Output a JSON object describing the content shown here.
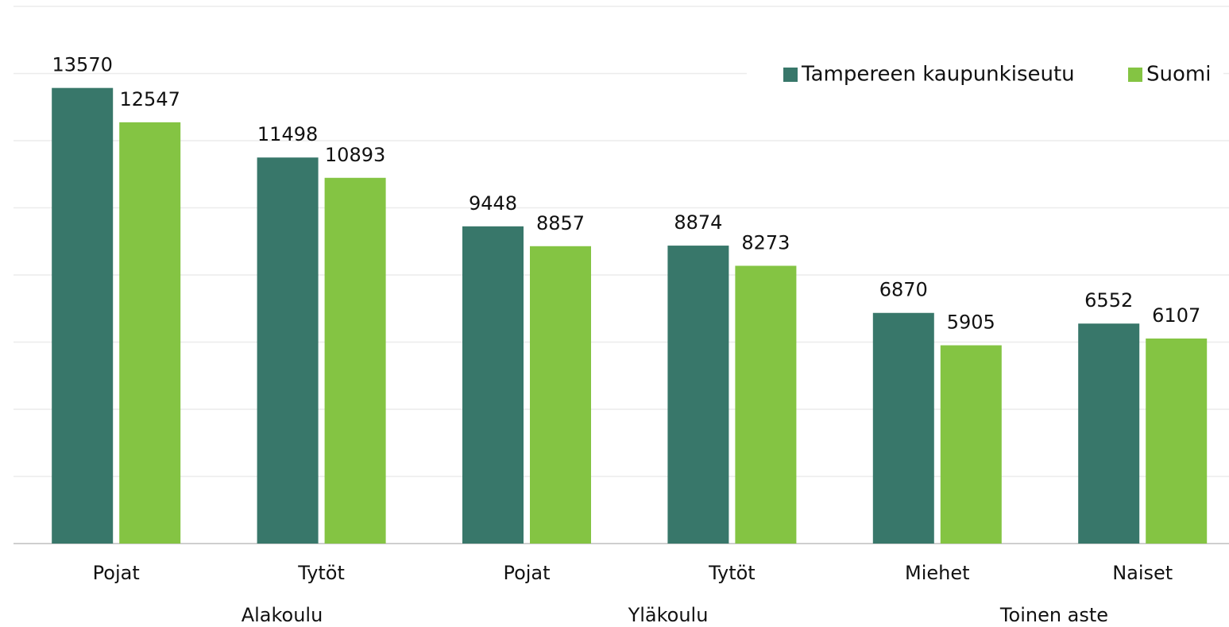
{
  "chart_data": {
    "type": "bar",
    "categories": [
      "Pojat",
      "Tytöt",
      "Pojat",
      "Tytöt",
      "Miehet",
      "Naiset"
    ],
    "groups": [
      "Alakoulu",
      "Yläkoulu",
      "Toinen aste"
    ],
    "series": [
      {
        "name": "Tampereen kaupunkiseutu",
        "color": "#38776a",
        "values": [
          13570,
          11498,
          9448,
          8874,
          6870,
          6552
        ]
      },
      {
        "name": "Suomi",
        "color": "#84c443",
        "values": [
          12547,
          10893,
          8857,
          8273,
          5905,
          6107
        ]
      }
    ],
    "ylim": [
      0,
      16000
    ],
    "yticks": [
      0,
      2000,
      4000,
      6000,
      8000,
      10000,
      12000,
      14000,
      16000
    ],
    "grid": true,
    "legend": "top-right"
  }
}
